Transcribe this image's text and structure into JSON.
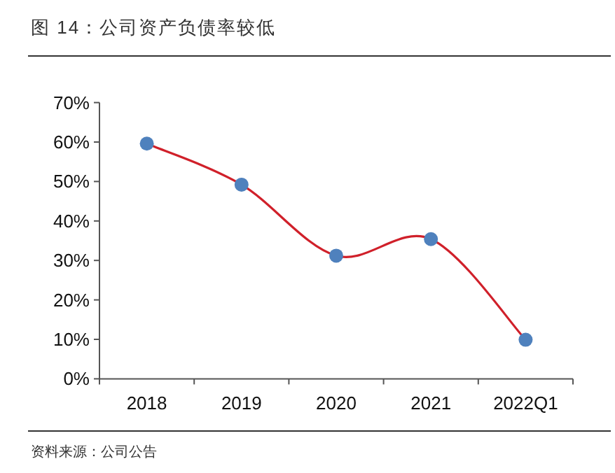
{
  "chart_data": {
    "type": "line",
    "title": "图 14：公司资产负债率较低",
    "categories": [
      "2018",
      "2019",
      "2020",
      "2021",
      "2022Q1"
    ],
    "series": [
      {
        "color": "#d0202a",
        "values": [
          59.6,
          49.2,
          31.2,
          35.4,
          9.9
        ]
      }
    ],
    "marker": "circle",
    "ylim": [
      0,
      70
    ],
    "yticks": [
      {
        "value": 0,
        "label": "0%"
      },
      {
        "value": 10,
        "label": "10%"
      },
      {
        "value": 20,
        "label": "20%"
      },
      {
        "value": 30,
        "label": "30%"
      },
      {
        "value": 40,
        "label": "40%"
      },
      {
        "value": 50,
        "label": "50%"
      },
      {
        "value": 60,
        "label": "60%"
      },
      {
        "value": 70,
        "label": "70%"
      }
    ],
    "annotations": [
      "资料来源：公司公告"
    ]
  }
}
